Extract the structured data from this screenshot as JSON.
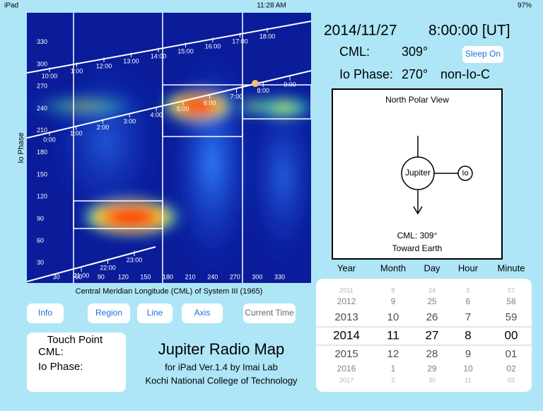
{
  "status": {
    "device": "iPad",
    "time": "11:28 AM",
    "battery": "97%"
  },
  "map": {
    "y_label": "Io Phase",
    "x_label": "Central Meridian Longitude (CML) of System III (1965)",
    "xticks": [
      30,
      60,
      90,
      120,
      150,
      180,
      210,
      240,
      270,
      300,
      330
    ],
    "yticks": [
      30,
      60,
      90,
      120,
      150,
      180,
      210,
      240,
      270,
      300,
      330
    ],
    "top_line": [
      "10:00",
      "1:00",
      "12:00",
      "13:00",
      "14:00",
      "15:00",
      "16:00",
      "17:00",
      "18:00"
    ],
    "mid_line": [
      "0:00",
      "1:00",
      "2:00",
      "3:00",
      "4:00",
      "5:00",
      "6:00",
      "7:00",
      "8:00",
      "9:00"
    ],
    "low_line": [
      "21:00",
      "22:00",
      "23:00"
    ]
  },
  "info": {
    "date": "2014/11/27",
    "time": "8:00:00 [UT]",
    "cml_label": "CML:",
    "cml_value": "309°",
    "io_label": "Io Phase:",
    "io_value": "270°",
    "io_region": "non-Io-C",
    "sleep_button": "Sleep On"
  },
  "polar": {
    "title": "North Polar View",
    "jupiter": "Jupiter",
    "io": "Io",
    "cml": "CML: 309°",
    "earth": "Toward Earth"
  },
  "buttons": [
    "Info",
    "Region",
    "Line",
    "Axis",
    "Current Time"
  ],
  "touch": {
    "title": "Touch Point",
    "cml": "CML:",
    "io": "Io Phase:"
  },
  "app": {
    "title": "Jupiter Radio Map",
    "subtitle": "for iPad  Ver.1.4  by Imai Lab",
    "school": "Kochi National College of Technology"
  },
  "picker": {
    "headers": [
      "Year",
      "Month",
      "Day",
      "Hour",
      "Minute"
    ],
    "columns": [
      [
        "2011",
        "2012",
        "2013",
        "2014",
        "2015",
        "2016",
        "2017"
      ],
      [
        "8",
        "9",
        "10",
        "11",
        "12",
        "1",
        "2"
      ],
      [
        "24",
        "25",
        "26",
        "27",
        "28",
        "29",
        "30"
      ],
      [
        "5",
        "6",
        "7",
        "8",
        "9",
        "10",
        "11"
      ],
      [
        "57",
        "58",
        "59",
        "00",
        "01",
        "02",
        "03"
      ]
    ]
  }
}
